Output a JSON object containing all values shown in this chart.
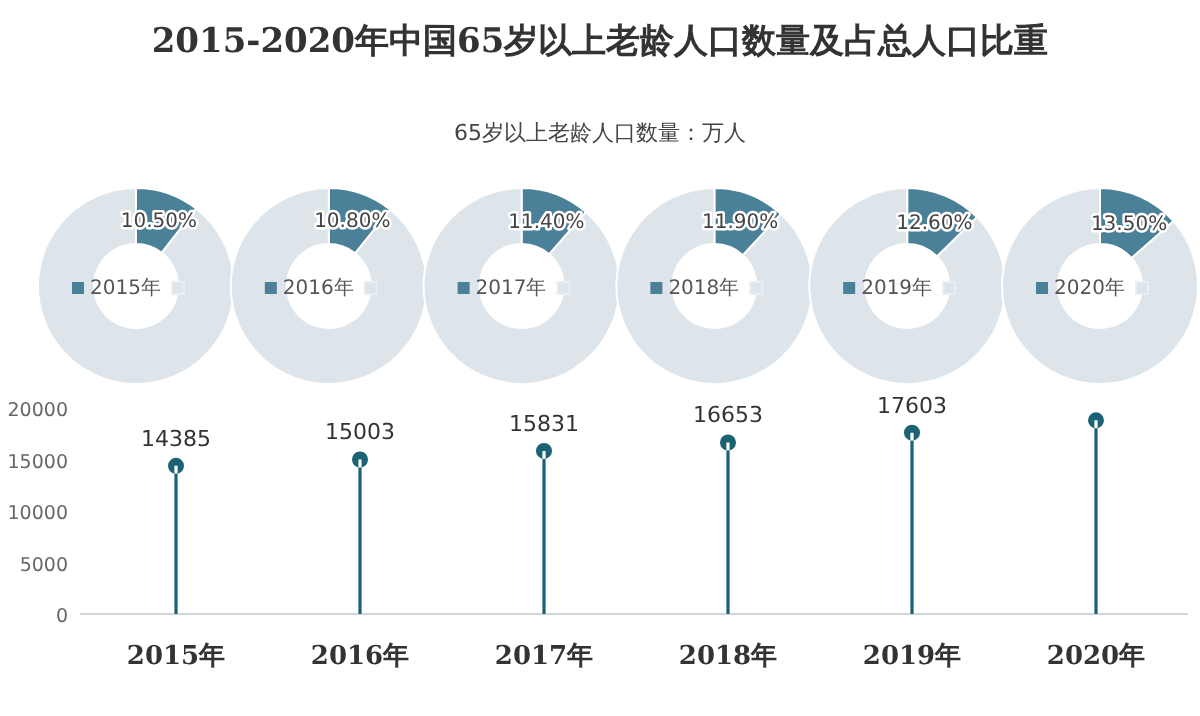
{
  "chart_data": [
    {
      "type": "lollipop",
      "title": "2015-2020年中国65岁以上老龄人口数量及占总人口比重",
      "subtitle": "65岁以上老龄人口数量：万人",
      "categories": [
        "2015年",
        "2016年",
        "2017年",
        "2018年",
        "2019年",
        "2020年"
      ],
      "values": [
        14385,
        15003,
        15831,
        16653,
        17603,
        18800
      ],
      "value_labels": [
        "14385",
        "15003",
        "15831",
        "16653",
        "17603",
        null
      ],
      "color": "#1b6275",
      "ylim": [
        0,
        20000
      ],
      "yticks": [
        0,
        5000,
        10000,
        15000,
        20000
      ],
      "marker": "circle"
    },
    {
      "type": "donut",
      "categories": [
        "2015年",
        null
      ],
      "values": [
        10.5,
        89.5
      ],
      "colors": [
        "#4b8099",
        "#dde5eb"
      ],
      "value_labels": [
        "10.50%",
        null
      ],
      "legend": "center"
    },
    {
      "type": "donut",
      "categories": [
        "2016年",
        null
      ],
      "values": [
        10.8,
        89.2
      ],
      "colors": [
        "#4b8099",
        "#dde5eb"
      ],
      "value_labels": [
        "10.80%",
        null
      ],
      "legend": "center"
    },
    {
      "type": "donut",
      "categories": [
        "2017年",
        null
      ],
      "values": [
        11.4,
        88.6
      ],
      "colors": [
        "#4b8099",
        "#dde5eb"
      ],
      "value_labels": [
        "11.40%",
        null
      ],
      "legend": "center"
    },
    {
      "type": "donut",
      "categories": [
        "2018年",
        null
      ],
      "values": [
        11.9,
        88.1
      ],
      "colors": [
        "#4b8099",
        "#dde5eb"
      ],
      "value_labels": [
        "11.90%",
        null
      ],
      "legend": "center"
    },
    {
      "type": "donut",
      "categories": [
        "2019年",
        null
      ],
      "values": [
        12.6,
        87.4
      ],
      "colors": [
        "#4b8099",
        "#dde5eb"
      ],
      "value_labels": [
        "12.60%",
        null
      ],
      "legend": "center"
    },
    {
      "type": "donut",
      "categories": [
        "2020年",
        null
      ],
      "values": [
        13.5,
        86.5
      ],
      "colors": [
        "#4b8099",
        "#dde5eb"
      ],
      "value_labels": [
        "13.50%",
        null
      ],
      "legend": "center"
    }
  ]
}
